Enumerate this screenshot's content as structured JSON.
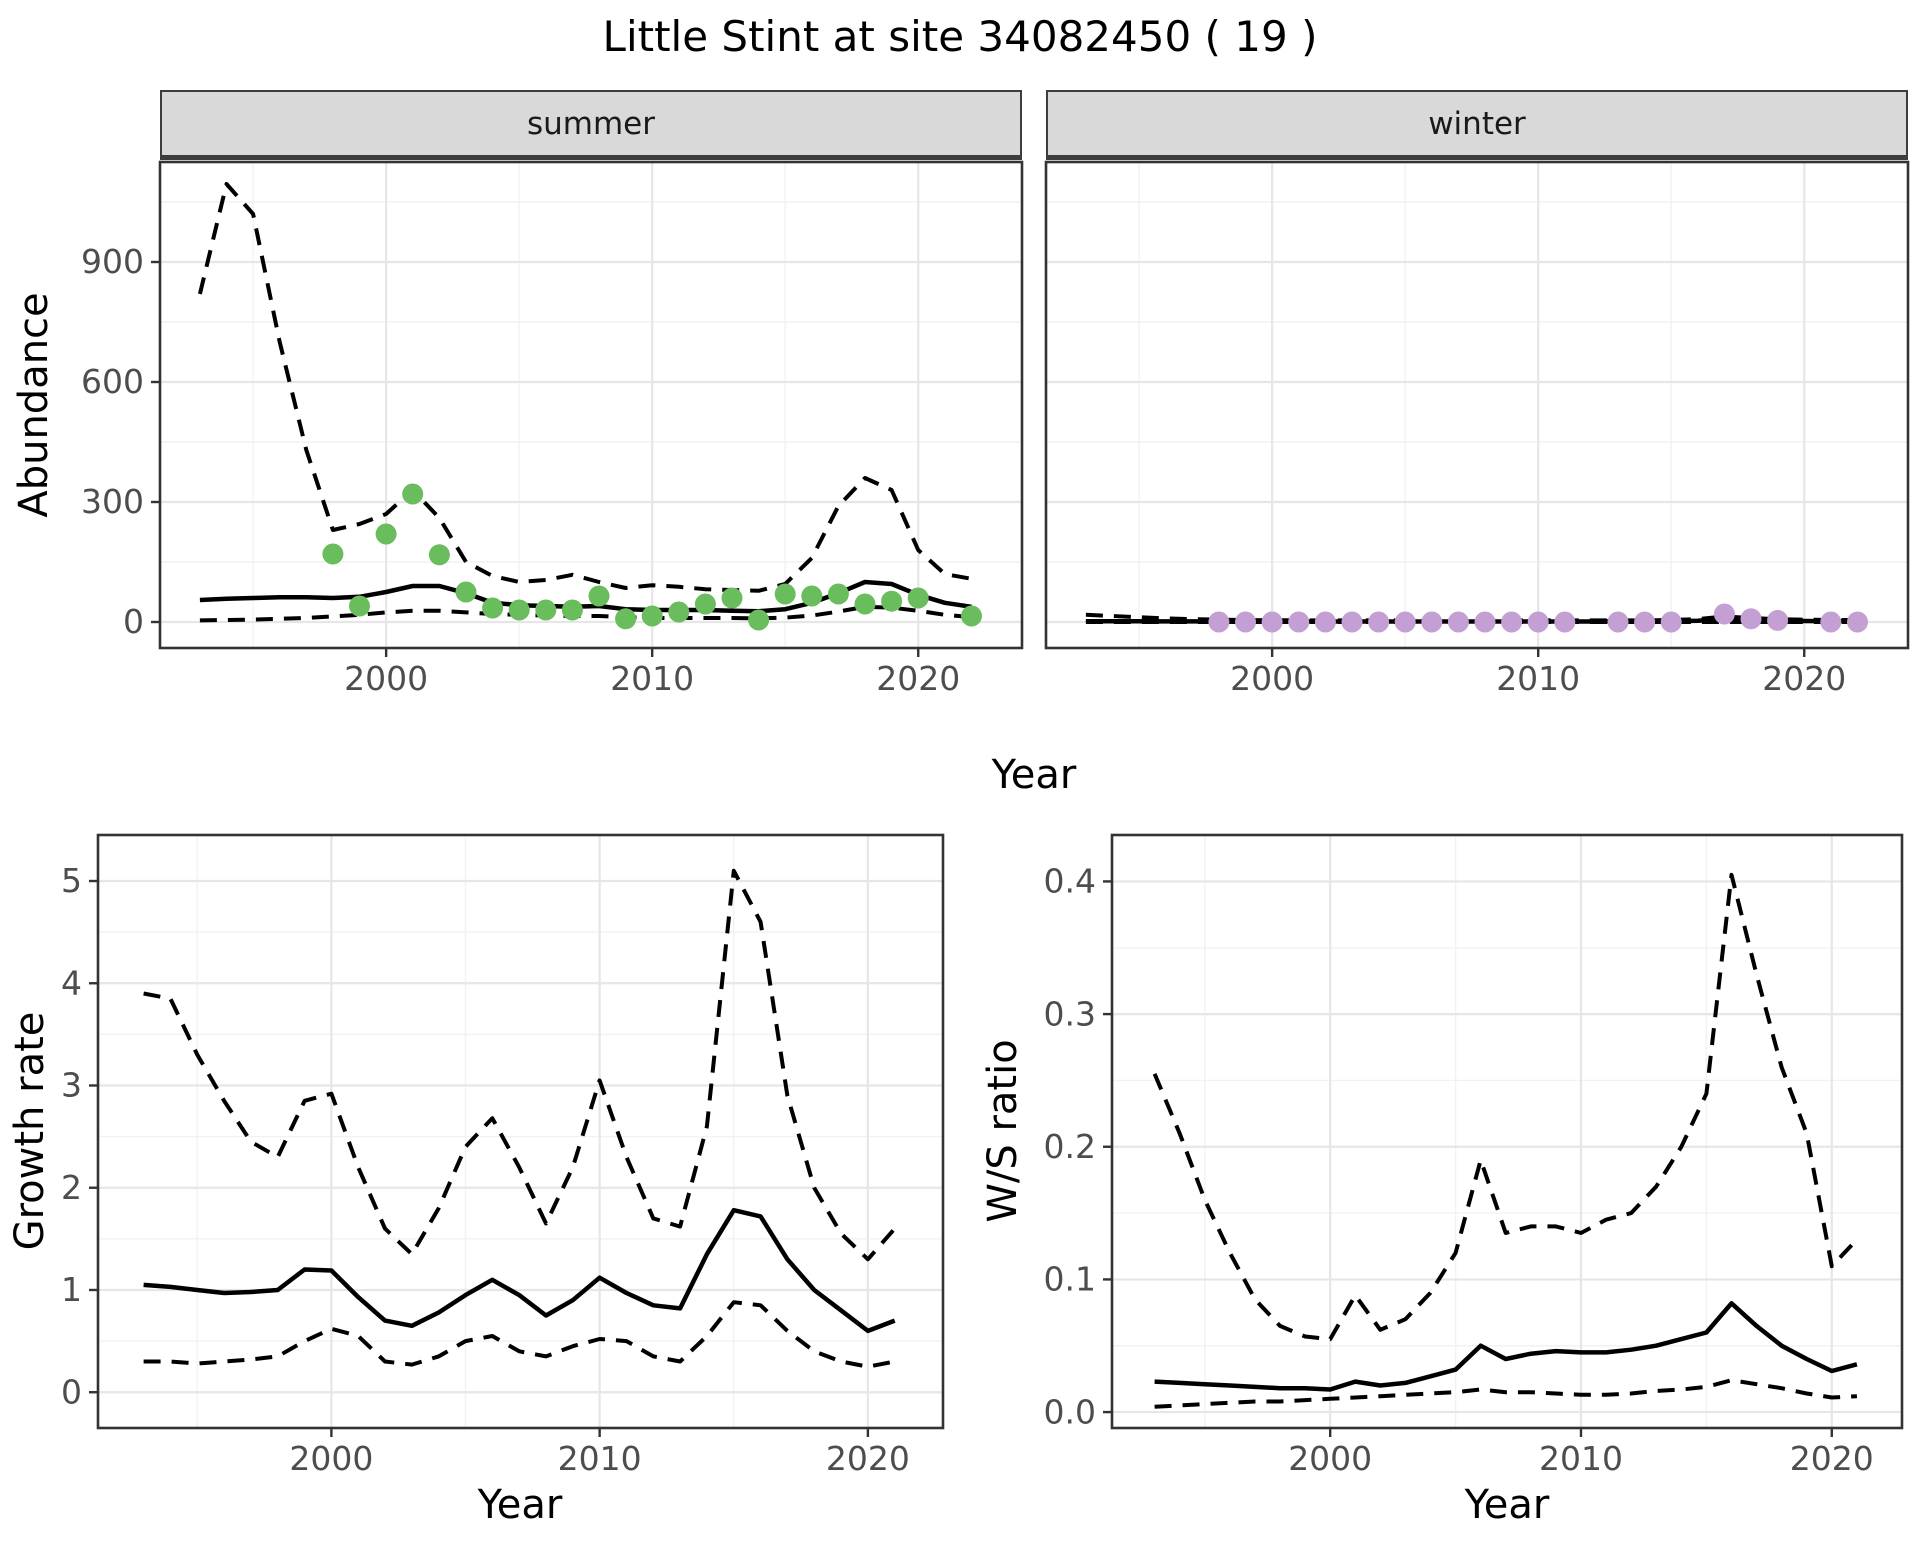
{
  "title": "Little Stint at site 34082450 ( 19 )",
  "axes": {
    "abundance": "Abundance",
    "year": "Year",
    "growth": "Growth rate",
    "ws": "W/S ratio"
  },
  "colors": {
    "line": "#000000",
    "summer_point": "#6abd5c",
    "winter_point": "#c49fd4",
    "grid_major": "#e6e6e6",
    "grid_minor": "#f2f2f2",
    "panel_border": "#333333",
    "strip_bg": "#d9d9d9",
    "tick_label": "#4d4d4d",
    "tick_mark": "#333333"
  },
  "chart_data": [
    {
      "id": "abundance-summer",
      "type": "line",
      "facet": "summer",
      "xlabel": "Year",
      "ylabel": "Abundance",
      "xlim": [
        1991.5,
        2023.9
      ],
      "ylim": [
        -65,
        1150
      ],
      "xticks": {
        "values": [
          2000,
          2010,
          2020
        ],
        "labels": [
          "2000",
          "2010",
          "2020"
        ]
      },
      "yticks": {
        "values": [
          0,
          300,
          600,
          900
        ],
        "labels": [
          "0",
          "300",
          "600",
          "900"
        ]
      },
      "minor_x": [
        1995,
        2005,
        2015
      ],
      "minor_y": [
        150,
        450,
        750,
        1050
      ],
      "years": [
        1993,
        1994,
        1995,
        1996,
        1997,
        1998,
        1999,
        2000,
        2001,
        2002,
        2003,
        2004,
        2005,
        2006,
        2007,
        2008,
        2009,
        2010,
        2011,
        2012,
        2013,
        2014,
        2015,
        2016,
        2017,
        2018,
        2019,
        2020,
        2021,
        2022
      ],
      "series": [
        {
          "name": "upper-ci",
          "style": "dashed",
          "values": [
            820,
            1095,
            1020,
            700,
            430,
            230,
            245,
            270,
            330,
            260,
            150,
            115,
            100,
            105,
            118,
            100,
            85,
            92,
            88,
            82,
            80,
            78,
            95,
            160,
            290,
            360,
            330,
            180,
            120,
            108
          ]
        },
        {
          "name": "mean",
          "style": "solid",
          "values": [
            55,
            58,
            60,
            62,
            62,
            60,
            63,
            75,
            90,
            90,
            72,
            48,
            42,
            40,
            38,
            40,
            32,
            30,
            30,
            30,
            28,
            27,
            32,
            48,
            72,
            100,
            95,
            68,
            48,
            38
          ]
        },
        {
          "name": "lower-ci",
          "style": "dashed",
          "values": [
            4,
            5,
            6,
            8,
            10,
            14,
            18,
            24,
            28,
            28,
            24,
            20,
            18,
            16,
            15,
            15,
            12,
            10,
            10,
            10,
            10,
            9,
            11,
            16,
            26,
            38,
            36,
            28,
            18,
            12
          ]
        }
      ],
      "observations": {
        "color_key": "summer_point",
        "years": [
          1998,
          1999,
          2000,
          2001,
          2002,
          2003,
          2004,
          2005,
          2006,
          2007,
          2008,
          2009,
          2010,
          2011,
          2012,
          2013,
          2014,
          2015,
          2016,
          2017,
          2018,
          2019,
          2020,
          2022
        ],
        "values": [
          170,
          40,
          220,
          320,
          168,
          75,
          35,
          30,
          30,
          30,
          65,
          8,
          15,
          25,
          45,
          60,
          5,
          70,
          65,
          70,
          45,
          52,
          60,
          15
        ]
      }
    },
    {
      "id": "abundance-winter",
      "type": "line",
      "facet": "winter",
      "xlabel": "Year",
      "ylabel": "Abundance",
      "xlim": [
        1991.5,
        2023.9
      ],
      "ylim": [
        -65,
        1150
      ],
      "xticks": {
        "values": [
          2000,
          2010,
          2020
        ],
        "labels": [
          "2000",
          "2010",
          "2020"
        ]
      },
      "yticks": {
        "values": [
          0,
          300,
          600,
          900
        ],
        "labels": [
          "0",
          "300",
          "600",
          "900"
        ]
      },
      "minor_x": [
        1995,
        2005,
        2015
      ],
      "minor_y": [
        150,
        450,
        750,
        1050
      ],
      "years": [
        1993,
        1994,
        1995,
        1996,
        1997,
        1998,
        1999,
        2000,
        2001,
        2002,
        2003,
        2004,
        2005,
        2006,
        2007,
        2008,
        2009,
        2010,
        2011,
        2012,
        2013,
        2014,
        2015,
        2016,
        2017,
        2018,
        2019,
        2020,
        2021,
        2022
      ],
      "series": [
        {
          "name": "upper-ci",
          "style": "dashed",
          "values": [
            18,
            15,
            12,
            9,
            7,
            6,
            5,
            4.5,
            4,
            4,
            4,
            4,
            4,
            4,
            4,
            4,
            4,
            4,
            4,
            4,
            4,
            4,
            5,
            7,
            14,
            10,
            7,
            6,
            5,
            5
          ]
        },
        {
          "name": "mean",
          "style": "solid",
          "values": [
            2,
            2,
            1.8,
            1.6,
            1.5,
            1.4,
            1.3,
            1.2,
            1.2,
            1.2,
            1.2,
            1.2,
            1.2,
            1.2,
            1.2,
            1.2,
            1.2,
            1.2,
            1.2,
            1.3,
            1.4,
            1.5,
            1.8,
            3,
            8,
            5,
            3.5,
            2.5,
            2,
            2
          ]
        },
        {
          "name": "lower-ci",
          "style": "dashed",
          "values": [
            0.1,
            0.1,
            0.1,
            0.1,
            0.1,
            0.1,
            0.1,
            0.1,
            0.1,
            0.1,
            0.1,
            0.1,
            0.1,
            0.1,
            0.1,
            0.1,
            0.1,
            0.1,
            0.1,
            0.1,
            0.1,
            0.1,
            0.1,
            0.1,
            0.1,
            0.1,
            0.1,
            0.1,
            0.1,
            0.1
          ]
        }
      ],
      "observations": {
        "color_key": "winter_point",
        "years": [
          1998,
          1999,
          2000,
          2001,
          2002,
          2003,
          2004,
          2005,
          2006,
          2007,
          2008,
          2009,
          2010,
          2011,
          2013,
          2014,
          2015,
          2017,
          2018,
          2019,
          2021,
          2022
        ],
        "values": [
          0,
          0,
          0,
          0,
          0,
          0,
          0,
          0,
          0,
          0,
          0,
          0,
          0,
          0,
          0,
          0,
          0,
          20,
          8,
          4,
          0,
          0
        ]
      }
    },
    {
      "id": "growth-rate",
      "type": "line",
      "facet": null,
      "xlabel": "Year",
      "ylabel": "Growth rate",
      "xlim": [
        1991.3,
        2022.8
      ],
      "ylim": [
        -0.35,
        5.45
      ],
      "xticks": {
        "values": [
          2000,
          2010,
          2020
        ],
        "labels": [
          "2000",
          "2010",
          "2020"
        ]
      },
      "yticks": {
        "values": [
          0,
          1,
          2,
          3,
          4,
          5
        ],
        "labels": [
          "0",
          "1",
          "2",
          "3",
          "4",
          "5"
        ]
      },
      "minor_x": [
        1995,
        2005,
        2015
      ],
      "minor_y": [
        0.5,
        1.5,
        2.5,
        3.5,
        4.5
      ],
      "years": [
        1993,
        1994,
        1995,
        1996,
        1997,
        1998,
        1999,
        2000,
        2001,
        2002,
        2003,
        2004,
        2005,
        2006,
        2007,
        2008,
        2009,
        2010,
        2011,
        2012,
        2013,
        2014,
        2015,
        2016,
        2017,
        2018,
        2019,
        2020,
        2021
      ],
      "series": [
        {
          "name": "upper-ci",
          "style": "dashed",
          "values": [
            3.9,
            3.85,
            3.3,
            2.85,
            2.45,
            2.3,
            2.85,
            2.92,
            2.2,
            1.6,
            1.35,
            1.8,
            2.4,
            2.68,
            2.2,
            1.65,
            2.2,
            3.05,
            2.3,
            1.7,
            1.62,
            2.6,
            5.1,
            4.6,
            2.9,
            2.0,
            1.55,
            1.3,
            1.6
          ]
        },
        {
          "name": "mean",
          "style": "solid",
          "values": [
            1.05,
            1.03,
            1.0,
            0.97,
            0.98,
            1.0,
            1.2,
            1.19,
            0.93,
            0.7,
            0.65,
            0.78,
            0.95,
            1.1,
            0.95,
            0.75,
            0.9,
            1.12,
            0.97,
            0.85,
            0.82,
            1.35,
            1.78,
            1.72,
            1.3,
            1.0,
            0.8,
            0.6,
            0.7
          ]
        },
        {
          "name": "lower-ci",
          "style": "dashed",
          "values": [
            0.3,
            0.3,
            0.28,
            0.3,
            0.32,
            0.35,
            0.5,
            0.62,
            0.55,
            0.3,
            0.27,
            0.35,
            0.5,
            0.55,
            0.4,
            0.35,
            0.45,
            0.52,
            0.5,
            0.35,
            0.3,
            0.55,
            0.88,
            0.85,
            0.6,
            0.4,
            0.3,
            0.25,
            0.3
          ]
        }
      ],
      "observations": null
    },
    {
      "id": "ws-ratio",
      "type": "line",
      "facet": null,
      "xlabel": "Year",
      "ylabel": "W/S ratio",
      "xlim": [
        1991.3,
        2022.8
      ],
      "ylim": [
        -0.012,
        0.435
      ],
      "xticks": {
        "values": [
          2000,
          2010,
          2020
        ],
        "labels": [
          "2000",
          "2010",
          "2020"
        ]
      },
      "yticks": {
        "values": [
          0,
          0.1,
          0.2,
          0.3,
          0.4
        ],
        "labels": [
          "0.0",
          "0.1",
          "0.2",
          "0.3",
          "0.4"
        ]
      },
      "minor_x": [
        1995,
        2005,
        2015
      ],
      "minor_y": [
        0.05,
        0.15,
        0.25,
        0.35
      ],
      "years": [
        1993,
        1994,
        1995,
        1996,
        1997,
        1998,
        1999,
        2000,
        2001,
        2002,
        2003,
        2004,
        2005,
        2006,
        2007,
        2008,
        2009,
        2010,
        2011,
        2012,
        2013,
        2014,
        2015,
        2016,
        2017,
        2018,
        2019,
        2020,
        2021
      ],
      "series": [
        {
          "name": "upper-ci",
          "style": "dashed",
          "values": [
            0.255,
            0.21,
            0.16,
            0.12,
            0.085,
            0.065,
            0.057,
            0.055,
            0.088,
            0.062,
            0.07,
            0.09,
            0.12,
            0.19,
            0.135,
            0.14,
            0.14,
            0.135,
            0.145,
            0.15,
            0.17,
            0.2,
            0.24,
            0.405,
            0.33,
            0.26,
            0.21,
            0.11,
            0.13
          ]
        },
        {
          "name": "mean",
          "style": "solid",
          "values": [
            0.023,
            0.022,
            0.021,
            0.02,
            0.019,
            0.018,
            0.018,
            0.017,
            0.023,
            0.02,
            0.022,
            0.027,
            0.032,
            0.05,
            0.04,
            0.044,
            0.046,
            0.045,
            0.045,
            0.047,
            0.05,
            0.055,
            0.06,
            0.082,
            0.065,
            0.05,
            0.04,
            0.031,
            0.036
          ]
        },
        {
          "name": "lower-ci",
          "style": "dashed",
          "values": [
            0.004,
            0.005,
            0.006,
            0.007,
            0.008,
            0.008,
            0.009,
            0.01,
            0.011,
            0.012,
            0.013,
            0.014,
            0.015,
            0.017,
            0.015,
            0.015,
            0.014,
            0.013,
            0.013,
            0.014,
            0.016,
            0.017,
            0.019,
            0.024,
            0.021,
            0.018,
            0.014,
            0.011,
            0.012
          ]
        }
      ],
      "observations": null
    }
  ]
}
